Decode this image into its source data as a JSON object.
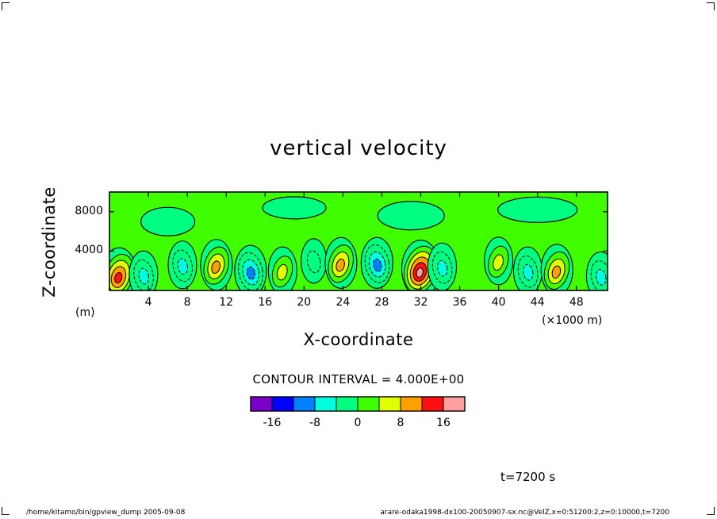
{
  "chart_data": {
    "type": "heatmap",
    "title": "vertical velocity",
    "xlabel": "X-coordinate",
    "ylabel": "Z-coordinate",
    "x_units": "(×1000 m)",
    "y_units": "(m)",
    "xlim": [
      0,
      51.2
    ],
    "ylim": [
      0,
      10000
    ],
    "x_ticks": [
      4,
      8,
      12,
      16,
      20,
      24,
      28,
      32,
      36,
      40,
      44,
      48
    ],
    "y_ticks": [
      4000,
      8000
    ],
    "contour_interval": "CONTOUR INTERVAL = 4.000E+00",
    "colorbar": {
      "levels": [
        -20,
        -16,
        -12,
        -8,
        -4,
        0,
        4,
        8,
        12,
        16,
        20
      ],
      "tick_labels": [
        "-16",
        "-8",
        "0",
        "8",
        "16"
      ],
      "tick_values": [
        -16,
        -8,
        0,
        8,
        16
      ],
      "colors": [
        "#7b00c8",
        "#0000ff",
        "#0080ff",
        "#00ffe0",
        "#00ff80",
        "#40ff00",
        "#e0ff00",
        "#ffa000",
        "#ff1010",
        "#ff9e9e"
      ]
    },
    "features": [
      {
        "x": 1.0,
        "z": 1600,
        "value": 14
      },
      {
        "x": 3.5,
        "z": 1600,
        "value": -6
      },
      {
        "x": 7.5,
        "z": 2600,
        "value": -8
      },
      {
        "x": 11.0,
        "z": 2600,
        "value": 12
      },
      {
        "x": 14.5,
        "z": 2000,
        "value": -10
      },
      {
        "x": 17.8,
        "z": 2000,
        "value": 6
      },
      {
        "x": 21.0,
        "z": 3000,
        "value": -4
      },
      {
        "x": 23.8,
        "z": 2800,
        "value": 12
      },
      {
        "x": 27.5,
        "z": 2800,
        "value": -10
      },
      {
        "x": 32.0,
        "z": 2200,
        "value": 18
      },
      {
        "x": 34.2,
        "z": 2400,
        "value": -8
      },
      {
        "x": 40.0,
        "z": 3000,
        "value": 6
      },
      {
        "x": 43.0,
        "z": 2000,
        "value": -6
      },
      {
        "x": 46.0,
        "z": 2100,
        "value": 10
      },
      {
        "x": 50.5,
        "z": 1500,
        "value": -6
      }
    ]
  },
  "annotations": {
    "time": "t=7200 s",
    "footer_left": "/home/kitamo/bin/gpview_dump  2005-09-08",
    "footer_right": "arare-odaka1998-dx100-20050907-sx.nc@VelZ,x=0:51200:2,z=0:10000,t=7200"
  }
}
